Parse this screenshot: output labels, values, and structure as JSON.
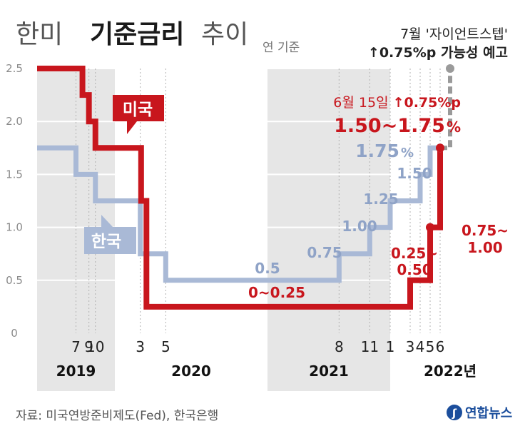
{
  "header": {
    "title_light_1": "한미",
    "title_bold": "기준금리",
    "title_light_2": "추이",
    "subtitle": "연 기준",
    "note_line1": "7월 '자이언트스텝'",
    "note_line2": "↑0.75%p 가능성 예고"
  },
  "footer": {
    "source": "자료: 미국연방준비제도(Fed), 한국은행",
    "logo_text": "연합뉴스"
  },
  "colors": {
    "us": "#c8161d",
    "kr": "#a9b9d6",
    "kr_text": "#8fa3c7",
    "band": "#e6e6e6",
    "axis_text": "#8a8a8a",
    "dashed": "#9a9a9a"
  },
  "chart_data": {
    "type": "line",
    "step": true,
    "ylim": [
      0,
      2.5
    ],
    "yticks": [
      "0",
      "0.5",
      "1.0",
      "1.5",
      "2.0",
      "2.5"
    ],
    "year_labels": [
      "2019",
      "2020",
      "2021",
      "2022년"
    ],
    "month_labels": [
      {
        "text": "7",
        "year": 2019,
        "month": 7
      },
      {
        "text": "9",
        "year": 2019,
        "month": 9
      },
      {
        "text": "10",
        "year": 2019,
        "month": 10
      },
      {
        "text": "3",
        "year": 2020,
        "month": 3
      },
      {
        "text": "5",
        "year": 2020,
        "month": 5
      },
      {
        "text": "8",
        "year": 2021,
        "month": 8
      },
      {
        "text": "11",
        "year": 2021,
        "month": 11
      },
      {
        "text": "1",
        "year": 2022,
        "month": 1
      },
      {
        "text": "3",
        "year": 2022,
        "month": 3
      },
      {
        "text": "4",
        "year": 2022,
        "month": 4
      },
      {
        "text": "5",
        "year": 2022,
        "month": 5
      },
      {
        "text": "6",
        "year": 2022,
        "month": 6
      }
    ],
    "series": [
      {
        "name": "미국",
        "color": "#c8161d",
        "points": [
          {
            "date": "2019-01",
            "value": 2.5
          },
          {
            "date": "2019-08",
            "value": 2.25
          },
          {
            "date": "2019-09",
            "value": 2.0
          },
          {
            "date": "2019-10",
            "value": 1.75
          },
          {
            "date": "2020-03-03",
            "value": 1.25
          },
          {
            "date": "2020-03-16",
            "value": 0.25
          },
          {
            "date": "2022-03",
            "value": 0.5
          },
          {
            "date": "2022-05",
            "value": 1.0
          },
          {
            "date": "2022-06",
            "value": 1.75
          }
        ],
        "end": "2022-06"
      },
      {
        "name": "한국",
        "color": "#a9b9d6",
        "points": [
          {
            "date": "2019-01",
            "value": 1.75
          },
          {
            "date": "2019-07",
            "value": 1.5
          },
          {
            "date": "2019-10",
            "value": 1.25
          },
          {
            "date": "2020-03",
            "value": 0.75
          },
          {
            "date": "2020-05",
            "value": 0.5
          },
          {
            "date": "2021-08",
            "value": 0.75
          },
          {
            "date": "2021-11",
            "value": 1.0
          },
          {
            "date": "2022-01",
            "value": 1.25
          },
          {
            "date": "2022-04",
            "value": 1.5
          },
          {
            "date": "2022-05",
            "value": 1.75
          }
        ],
        "end": "2022-06"
      }
    ],
    "forecast": {
      "from": 1.75,
      "to": 2.5,
      "date": "2022-07"
    },
    "annotations": {
      "us_badge": "미국",
      "kr_badge": "한국",
      "us_low": "0~0.25",
      "us_mar22": "0.25~",
      "us_mar22_b": "0.50",
      "us_may22": "0.75~",
      "us_may22_b": "1.00",
      "us_jun_date": "6월 15일",
      "us_jun_up": "↑0.75%p",
      "us_jun_range": "1.50~1.75",
      "us_jun_unit": "%",
      "kr_050": "0.5",
      "kr_075": "0.75",
      "kr_100": "1.00",
      "kr_125": "1.25",
      "kr_150": "1.50",
      "kr_175": "1.75",
      "kr_175_unit": "%"
    }
  }
}
